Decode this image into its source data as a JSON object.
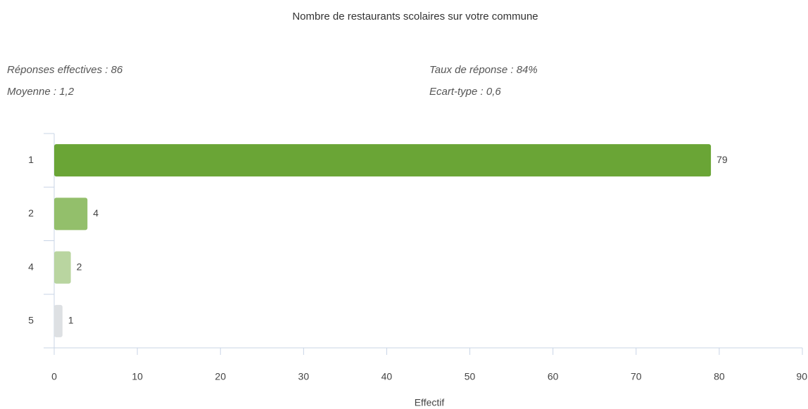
{
  "chart_data": {
    "type": "hbar",
    "title": "Nombre de restaurants scolaires sur votre commune",
    "stats": [
      "Réponses effectives : 86",
      "Taux de réponse : 84%",
      "Moyenne : 1,2",
      "Ecart-type : 0,6"
    ],
    "categories": [
      "1",
      "2",
      "4",
      "5"
    ],
    "values": [
      79,
      4,
      2,
      1
    ],
    "colors": [
      "#6aa536",
      "#93bf6b",
      "#b9d5a0",
      "#dde0e3"
    ],
    "xlim": [
      0,
      90
    ],
    "xticks": [
      0,
      10,
      20,
      30,
      40,
      50,
      60,
      70,
      80,
      90
    ],
    "xlabel": "Effectif"
  }
}
